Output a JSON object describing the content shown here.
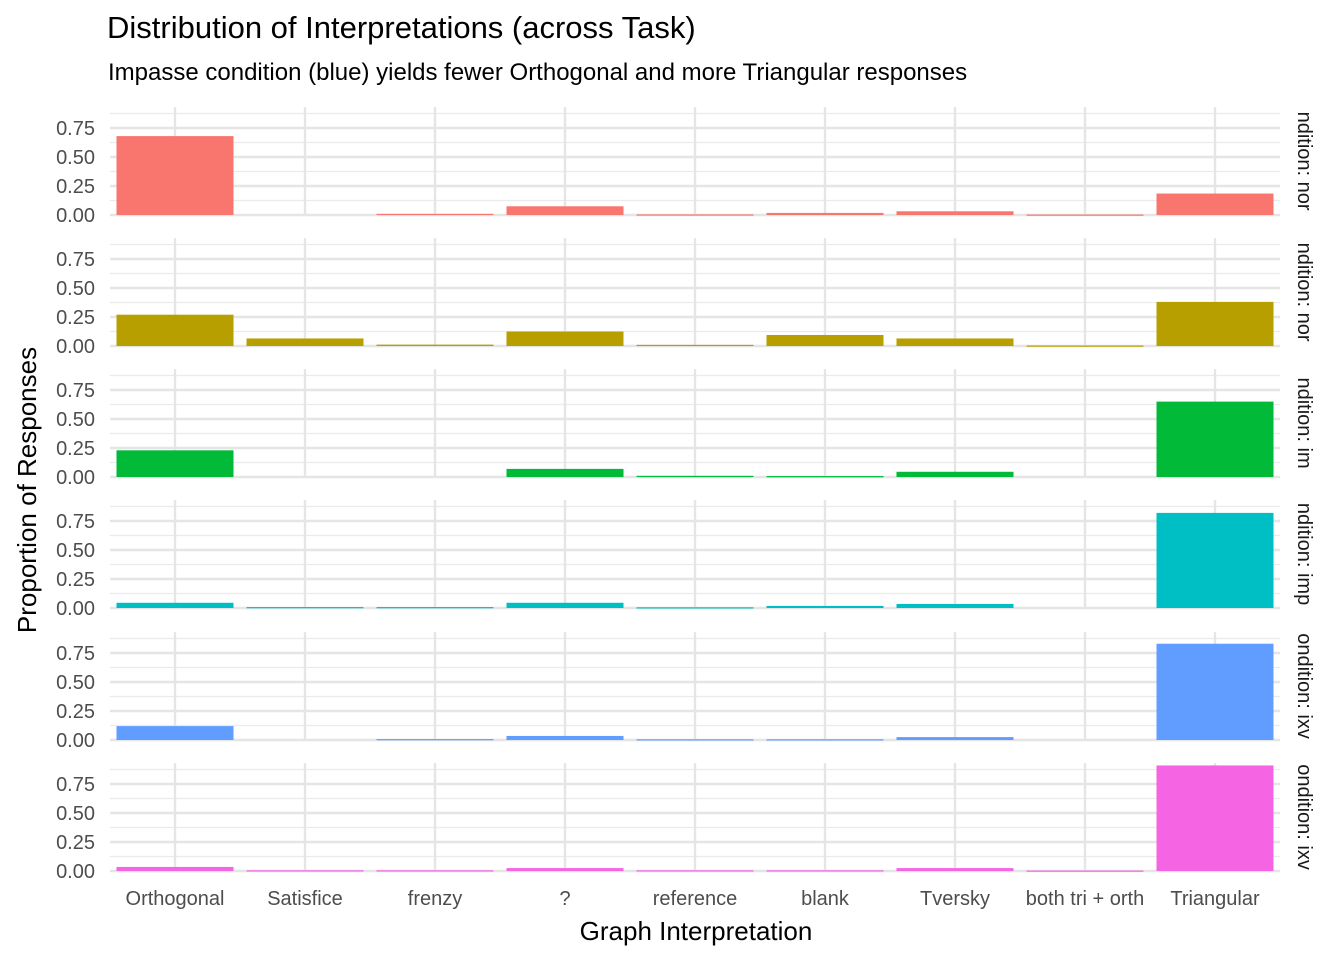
{
  "chart_data": {
    "type": "bar",
    "title": "Distribution of Interpretations (across Task)",
    "subtitle": "Impasse condition (blue) yields fewer Orthogonal and more Triangular responses",
    "xlabel": "Graph Interpretation",
    "ylabel": "Proportion of Responses",
    "categories": [
      "Orthogonal",
      "Satisfice",
      "frenzy",
      "?",
      "reference",
      "blank",
      "Tversky",
      "both tri + orth",
      "Triangular"
    ],
    "y_ticks": [
      "0.00",
      "0.25",
      "0.50",
      "0.75"
    ],
    "ylim": [
      0,
      0.93
    ],
    "grid": true,
    "legend": "none",
    "facets": [
      {
        "strip": "ndition: nor",
        "color": "#F8766D",
        "values": [
          0.68,
          0.0,
          0.01,
          0.075,
          0.005,
          0.018,
          0.032,
          0.004,
          0.185
        ]
      },
      {
        "strip": "ndition: nor",
        "color": "#B79F00",
        "values": [
          0.27,
          0.065,
          0.012,
          0.125,
          0.01,
          0.095,
          0.065,
          0.004,
          0.38
        ]
      },
      {
        "strip": "ndition: im",
        "color": "#00BA38",
        "values": [
          0.23,
          0.0,
          0.0,
          0.07,
          0.01,
          0.008,
          0.045,
          0.0,
          0.65
        ]
      },
      {
        "strip": "ndition: imp",
        "color": "#00BFC4",
        "values": [
          0.045,
          0.008,
          0.008,
          0.045,
          0.006,
          0.018,
          0.035,
          0.0,
          0.82
        ]
      },
      {
        "strip": "ondition: ixv",
        "color": "#619CFF",
        "values": [
          0.12,
          0.0,
          0.008,
          0.035,
          0.006,
          0.006,
          0.025,
          0.0,
          0.83
        ]
      },
      {
        "strip": "ondition: ixv",
        "color": "#F564E3",
        "values": [
          0.035,
          0.006,
          0.006,
          0.025,
          0.006,
          0.006,
          0.025,
          0.004,
          0.91
        ]
      }
    ]
  }
}
